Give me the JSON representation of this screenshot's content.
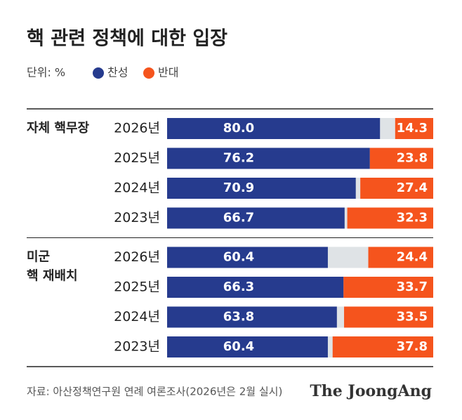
{
  "title": "핵 관련 정책에 대한 입장",
  "unit": "단위: %",
  "source": "자료: 아산정책연구원 연례 여론조사(2026년은 2월 실시)",
  "logo": "The JoongAng",
  "chart_data": [
    {
      "type": "bar",
      "title": [
        "자체 핵무장"
      ],
      "categories": [
        "2026년",
        "2025년",
        "2024년",
        "2023년"
      ],
      "xlim": [
        0,
        100
      ],
      "series": [
        {
          "name": "찬성",
          "color": "#263b8e",
          "values": [
            80.0,
            76.2,
            70.9,
            66.7
          ],
          "value_labels": [
            "80.0",
            "76.2",
            "70.9",
            "66.7"
          ]
        },
        {
          "name": "반대",
          "color": "#f5541d",
          "values": [
            14.3,
            23.8,
            27.4,
            32.3
          ],
          "value_labels": [
            "14.3",
            "23.8",
            "27.4",
            "32.3"
          ]
        }
      ]
    },
    {
      "type": "bar",
      "title": [
        "미군",
        "핵 재배치"
      ],
      "categories": [
        "2026년",
        "2025년",
        "2024년",
        "2023년"
      ],
      "xlim": [
        0,
        100
      ],
      "series": [
        {
          "name": "찬성",
          "color": "#263b8e",
          "values": [
            60.4,
            66.3,
            63.8,
            60.4
          ],
          "value_labels": [
            "60.4",
            "66.3",
            "63.8",
            "60.4"
          ]
        },
        {
          "name": "반대",
          "color": "#f5541d",
          "values": [
            24.4,
            33.7,
            33.5,
            37.8
          ],
          "value_labels": [
            "24.4",
            "33.7",
            "33.5",
            "37.8"
          ]
        }
      ]
    }
  ]
}
